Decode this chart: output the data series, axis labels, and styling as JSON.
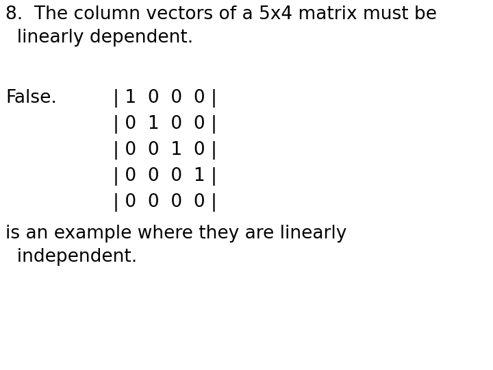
{
  "background_color": "#ffffff",
  "title_line1": "8.  The column vectors of a 5x4 matrix must be",
  "title_line2": "  linearly dependent.",
  "false_label": "False.",
  "matrix_rows": [
    "| 1  0  0  0 |",
    "| 0  1  0  0 |",
    "| 0  0  1  0 |",
    "| 0  0  0  1 |",
    "| 0  0  0  0 |"
  ],
  "footer_line1": "is an example where they are linearly",
  "footer_line2": "  independent.",
  "title_fontsize": 19,
  "body_fontsize": 19,
  "text_color": "#000000",
  "font_family": "DejaVu Sans"
}
